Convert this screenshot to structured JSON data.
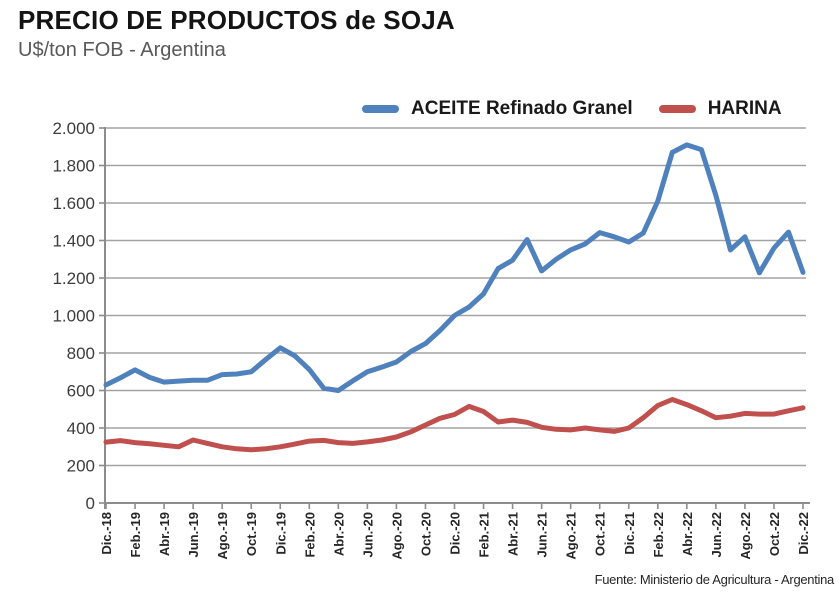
{
  "header": {
    "title": "PRECIO DE PRODUCTOS de SOJA",
    "subtitle": "U$/ton FOB - Argentina"
  },
  "footer": {
    "source": "Fuente: Ministerio de Agricultura - Argentina"
  },
  "colors": {
    "axis": "#8c8c8c",
    "grid": "#a3a3a3",
    "aceite_line": "#4F81BD",
    "harina_line": "#C0504D",
    "title_text": "#141414",
    "subtitle_text": "#595959",
    "tick_text": "#3d3d3d"
  },
  "chart_data": {
    "type": "line",
    "title": "PRECIO DE PRODUCTOS de SOJA",
    "subtitle": "U$/ton FOB - Argentina",
    "unit": "U$/ton FOB",
    "grid": "horizontal",
    "legend_position": "top-center",
    "x_label_every": 2,
    "x_tick_labels": [
      "Dic.-18",
      "Feb.-19",
      "Abr.-19",
      "Jun.-19",
      "Ago.-19",
      "Oct.-19",
      "Dic.-19",
      "Feb.-20",
      "Abr.-20",
      "Jun.-20",
      "Ago.-20",
      "Oct.-20",
      "Dic.-20",
      "Feb.-21",
      "Abr.-21",
      "Jun.-21",
      "Ago.-21",
      "Oct.-21",
      "Dic.-21",
      "Feb.-22",
      "Abr.-22",
      "Jun.-22",
      "Ago.-22",
      "Oct.-22",
      "Dic.-22"
    ],
    "y_axis": {
      "min": 0,
      "max": 2000,
      "step": 200,
      "tick_labels": [
        "0",
        "200",
        "400",
        "600",
        "800",
        "1.000",
        "1.200",
        "1.400",
        "1.600",
        "1.800",
        "2.000"
      ]
    },
    "series": [
      {
        "name": "ACEITE Refinado Granel",
        "color": "#4F81BD",
        "values": [
          630,
          668,
          710,
          670,
          645,
          650,
          655,
          655,
          685,
          688,
          700,
          765,
          828,
          785,
          712,
          612,
          600,
          652,
          700,
          725,
          752,
          808,
          850,
          920,
          1000,
          1045,
          1115,
          1250,
          1295,
          1405,
          1238,
          1300,
          1350,
          1382,
          1442,
          1420,
          1392,
          1440,
          1610,
          1870,
          1910,
          1885,
          1640,
          1350,
          1420,
          1228,
          1360,
          1445,
          1230
        ]
      },
      {
        "name": "HARINA",
        "color": "#C0504D",
        "values": [
          325,
          333,
          322,
          316,
          308,
          300,
          336,
          318,
          300,
          289,
          284,
          289,
          300,
          314,
          330,
          334,
          322,
          318,
          326,
          336,
          352,
          380,
          416,
          452,
          472,
          515,
          488,
          432,
          442,
          430,
          404,
          393,
          390,
          400,
          390,
          382,
          400,
          455,
          520,
          552,
          525,
          492,
          455,
          463,
          478,
          474,
          474,
          492,
          508
        ]
      }
    ],
    "source": "Fuente: Ministerio de Agricultura - Argentina"
  }
}
